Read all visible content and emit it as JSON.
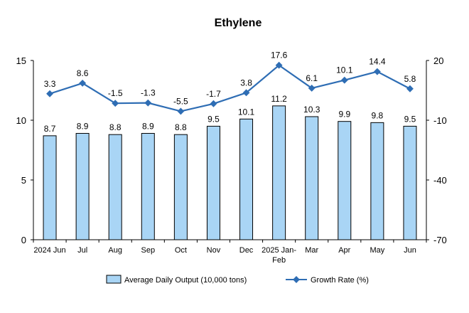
{
  "chart_data": {
    "type": "bar",
    "title": "Ethylene",
    "categories": [
      [
        "2024 Jun"
      ],
      [
        "Jul"
      ],
      [
        "Aug"
      ],
      [
        "Sep"
      ],
      [
        "Oct"
      ],
      [
        "Nov"
      ],
      [
        "Dec"
      ],
      [
        "2025 Jan-",
        "Feb"
      ],
      [
        "Mar"
      ],
      [
        "Apr"
      ],
      [
        "May"
      ],
      [
        "Jun"
      ]
    ],
    "series": [
      {
        "name": "Average Daily Output (10,000 tons)",
        "type": "bar",
        "axis": "left",
        "values": [
          8.7,
          8.9,
          8.8,
          8.9,
          8.8,
          9.5,
          10.1,
          11.2,
          10.3,
          9.9,
          9.8,
          9.5
        ],
        "labels": [
          "8.7",
          "8.9",
          "8.8",
          "8.9",
          "8.8",
          "9.5",
          "10.1",
          "11.2",
          "10.3",
          "9.9",
          "9.8",
          "9.5"
        ],
        "color": "#a9d5f5",
        "stroke": "#000000"
      },
      {
        "name": "Growth Rate (%)",
        "type": "line",
        "axis": "right",
        "values": [
          3.3,
          8.6,
          -1.5,
          -1.3,
          -5.5,
          -1.7,
          3.8,
          17.6,
          6.1,
          10.1,
          14.4,
          5.8
        ],
        "labels": [
          "3.3",
          "8.6",
          "-1.5",
          "-1.3",
          "-5.5",
          "-1.7",
          "3.8",
          "17.6",
          "6.1",
          "10.1",
          "14.4",
          "5.8"
        ],
        "color": "#2e6db4"
      }
    ],
    "y_left": {
      "lim": [
        0,
        15
      ],
      "ticks": [
        "0",
        "5",
        "10",
        "15"
      ]
    },
    "y_right": {
      "lim": [
        -70,
        20
      ],
      "ticks": [
        "-70",
        "-40",
        "-10",
        "20"
      ]
    },
    "grid": false,
    "legend": "bottom"
  }
}
